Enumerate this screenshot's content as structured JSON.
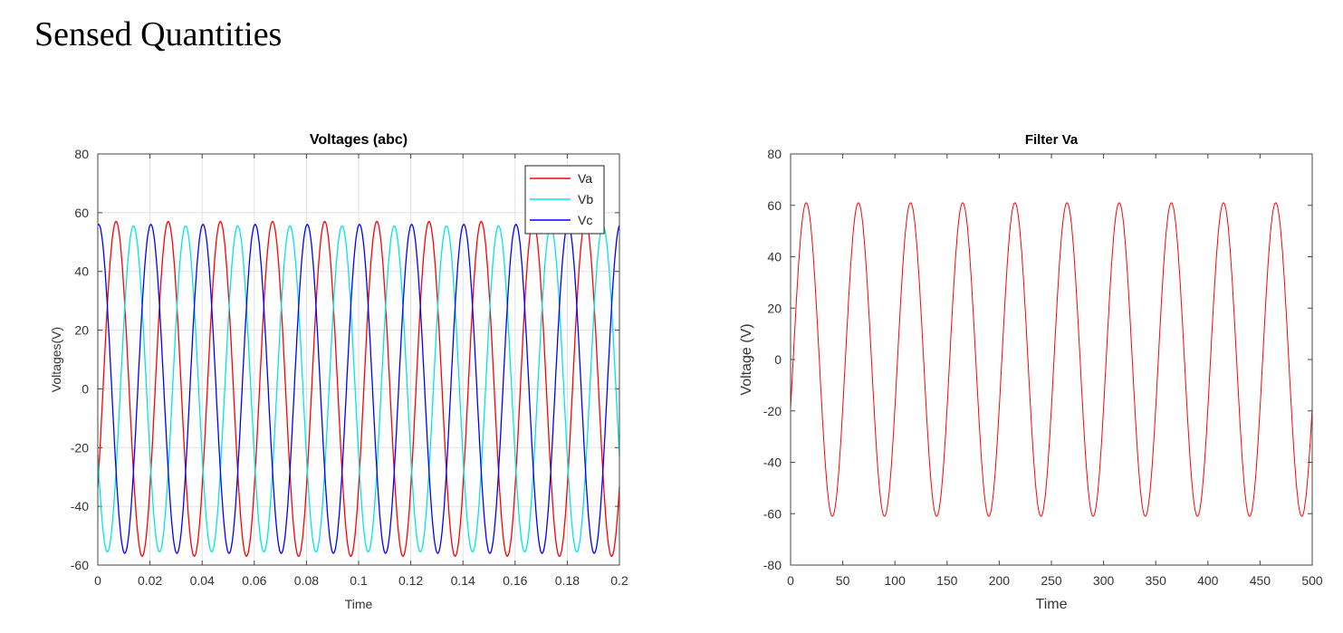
{
  "page_title": "Sensed Quantities",
  "chart_data": [
    {
      "type": "line",
      "title": "Voltages (abc)",
      "xlabel": "Time",
      "ylabel": "Voltages(V)",
      "xlim": [
        0,
        0.2
      ],
      "ylim": [
        -60,
        80
      ],
      "xticks": [
        "0",
        "0.02",
        "0.04",
        "0.06",
        "0.08",
        "0.1",
        "0.12",
        "0.14",
        "0.16",
        "0.18",
        "0.2"
      ],
      "yticks": [
        "-60",
        "-40",
        "-20",
        "0",
        "20",
        "40",
        "60",
        "80"
      ],
      "grid": true,
      "legend_position": "top-right",
      "series": [
        {
          "name": "Va",
          "color": "#ff0000",
          "amplitude": 57,
          "frequency_hz": 50,
          "phase_deg": -36
        },
        {
          "name": "Vb",
          "color": "#00e5e5",
          "amplitude": 55.5,
          "frequency_hz": 50,
          "phase_deg": -156
        },
        {
          "name": "Vc",
          "color": "#0000ff",
          "amplitude": 56,
          "frequency_hz": 50,
          "phase_deg": 84
        }
      ]
    },
    {
      "type": "line",
      "title": "Filter Va",
      "xlabel": "Time",
      "ylabel": "Voltage (V)",
      "xlim": [
        0,
        500
      ],
      "ylim": [
        -80,
        80
      ],
      "xticks": [
        "0",
        "50",
        "100",
        "150",
        "200",
        "250",
        "300",
        "350",
        "400",
        "450",
        "500"
      ],
      "yticks": [
        "-80",
        "-60",
        "-40",
        "-20",
        "0",
        "20",
        "40",
        "60",
        "80"
      ],
      "grid": false,
      "series": [
        {
          "name": "Va",
          "color": "#ff0000",
          "amplitude": 61,
          "period": 50,
          "phase_deg": -18
        }
      ]
    }
  ]
}
